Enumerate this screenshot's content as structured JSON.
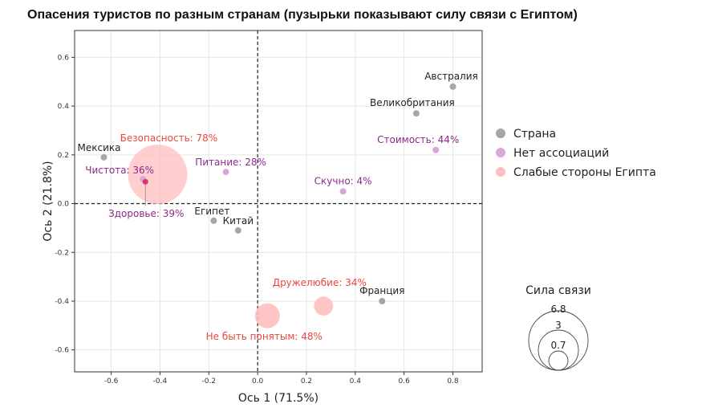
{
  "chart_data": {
    "type": "scatter",
    "title": "Опасения туристов по разным странам (пузырьки показывают силу связи с Египтом)",
    "xlabel": "Ось 1 (71.5%)",
    "ylabel": "Ось 2 (21.8%)",
    "xlim": [
      -0.75,
      0.92
    ],
    "ylim": [
      -0.69,
      0.71
    ],
    "xticks": [
      "-0.6",
      "-0.4",
      "-0.2",
      "0.0",
      "0.2",
      "0.4",
      "0.6",
      "0.8"
    ],
    "yticks": [
      "-0.6",
      "-0.4",
      "-0.2",
      "0.0",
      "0.2",
      "0.4",
      "0.6"
    ],
    "grid": true,
    "legend_position": "right",
    "colors": {
      "country": "#a6a6a6",
      "no_association": "#d9a6d9",
      "weakness": "#ffbfbf",
      "no_association_text": "#8b2a8b",
      "weakness_text": "#e8473f",
      "country_text": "#222222",
      "health_point": "#d4386b"
    },
    "series": [
      {
        "name": "Страна",
        "points": [
          {
            "label": "Австралия",
            "x": 0.8,
            "y": 0.48
          },
          {
            "label": "Великобритания",
            "x": 0.65,
            "y": 0.37
          },
          {
            "label": "Мексика",
            "x": -0.63,
            "y": 0.19
          },
          {
            "label": "Египет",
            "x": -0.18,
            "y": -0.07
          },
          {
            "label": "Китай",
            "x": -0.08,
            "y": -0.11
          },
          {
            "label": "Франция",
            "x": 0.51,
            "y": -0.4
          }
        ]
      },
      {
        "name": "Нет ассоциаций",
        "points": [
          {
            "label": "Стоимость: 44%",
            "x": 0.73,
            "y": 0.22
          },
          {
            "label": "Питание: 28%",
            "x": -0.13,
            "y": 0.13
          },
          {
            "label": "Скучно: 4%",
            "x": 0.35,
            "y": 0.05
          },
          {
            "label": "Чистота: 36%",
            "x": -0.47,
            "y": 0.1
          },
          {
            "label": "Здоровье: 39%",
            "x": -0.46,
            "y": 0.09
          }
        ]
      },
      {
        "name": "Слабые стороны Египта",
        "points": [
          {
            "label": "Безопасность: 78%",
            "x": -0.41,
            "y": 0.12,
            "strength": 6.8
          },
          {
            "label": "Дружелюбие: 34%",
            "x": 0.27,
            "y": -0.42,
            "strength": 0.7
          },
          {
            "label": "Не быть понятым: 48%",
            "x": 0.04,
            "y": -0.46,
            "strength": 1.2
          }
        ]
      }
    ],
    "size_legend": {
      "title": "Сила связи",
      "values": [
        "6.8",
        "3",
        "0.7"
      ]
    }
  }
}
